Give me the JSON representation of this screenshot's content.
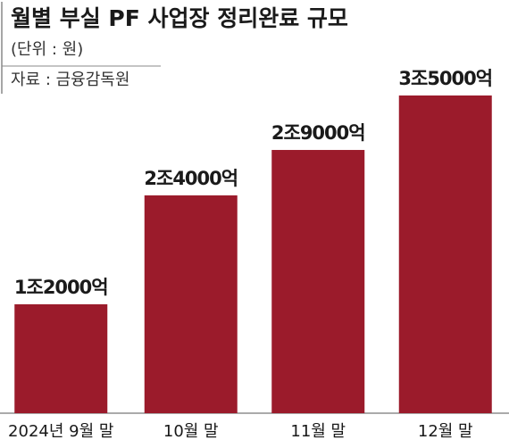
{
  "chart_data": {
    "type": "bar",
    "title": "월별 부실 PF 사업장 정리완료 규모",
    "subtitle": "(단위 : 원)",
    "source": "자료 : 금융감독원",
    "categories": [
      "2024년 9월 말",
      "10월 말",
      "11월 말",
      "12월 말"
    ],
    "values": [
      1200000000000,
      2400000000000,
      2900000000000,
      3500000000000
    ],
    "value_labels": [
      "1조2000억",
      "2조4000억",
      "2조9000억",
      "3조5000억"
    ],
    "color": "#9b1b2b"
  }
}
